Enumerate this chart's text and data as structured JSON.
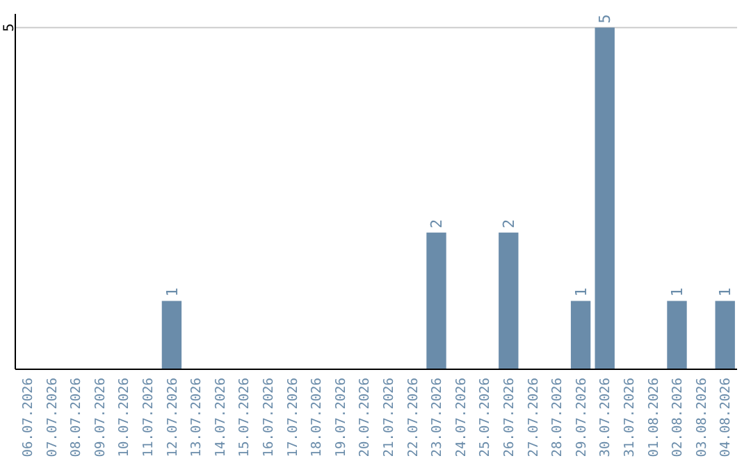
{
  "chart_data": {
    "type": "bar",
    "categories": [
      "06.07.2026",
      "07.07.2026",
      "08.07.2026",
      "09.07.2026",
      "10.07.2026",
      "11.07.2026",
      "12.07.2026",
      "13.07.2026",
      "14.07.2026",
      "15.07.2026",
      "16.07.2026",
      "17.07.2026",
      "18.07.2026",
      "19.07.2026",
      "20.07.2026",
      "21.07.2026",
      "22.07.2026",
      "23.07.2026",
      "24.07.2026",
      "25.07.2026",
      "26.07.2026",
      "27.07.2026",
      "28.07.2026",
      "29.07.2026",
      "30.07.2026",
      "31.07.2026",
      "01.08.2026",
      "02.08.2026",
      "03.08.2026",
      "04.08.2026"
    ],
    "values": [
      0,
      0,
      0,
      0,
      0,
      0,
      1,
      0,
      0,
      0,
      0,
      0,
      0,
      0,
      0,
      0,
      0,
      2,
      0,
      0,
      2,
      0,
      0,
      1,
      5,
      0,
      0,
      1,
      0,
      1
    ],
    "value_labels": [
      null,
      null,
      null,
      null,
      null,
      null,
      "1",
      null,
      null,
      null,
      null,
      null,
      null,
      null,
      null,
      null,
      null,
      "2",
      null,
      null,
      "2",
      null,
      null,
      "1",
      "5",
      null,
      null,
      "1",
      null,
      "1"
    ],
    "color": "#6a8caa",
    "ylim": [
      0,
      5.2
    ],
    "yticks": [
      5
    ],
    "grid": "y"
  }
}
